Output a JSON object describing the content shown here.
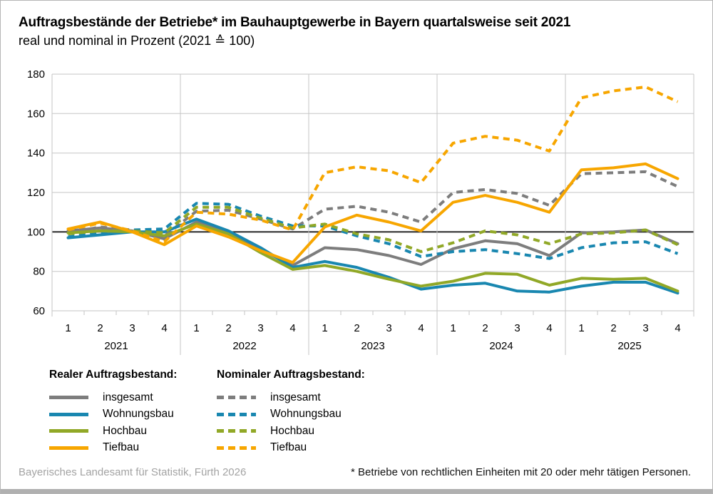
{
  "header": {
    "title": "Auftragsbestände der Betriebe* im Bauhauptgewerbe in Bayern quartalsweise seit 2021",
    "subtitle": "real und nominal in Prozent (2021 ≙ 100)"
  },
  "legend": {
    "real_header": "Realer Auftragsbestand:",
    "nominal_header": "Nominaler Auftragsbestand:",
    "items": [
      "insgesamt",
      "Wohnungsbau",
      "Hochbau",
      "Tiefbau"
    ]
  },
  "footer": {
    "source": "Bayerisches Landesamt für Statistik, Fürth 2026",
    "footnote": "* Betriebe von rechtlichen Einheiten mit 20 oder mehr tätigen Personen."
  },
  "colors": {
    "insgesamt": "#7d7d7d",
    "wohnungsbau": "#1987b0",
    "hochbau": "#91a827",
    "tiefbau": "#f7a600",
    "grid": "#c6c6c6",
    "baseline": "#1a1a1a"
  },
  "chart_data": {
    "type": "line",
    "title": "Auftragsbestände der Betriebe im Bauhauptgewerbe in Bayern quartalsweise seit 2021",
    "subtitle": "real und nominal in Prozent (2021 = 100)",
    "years": [
      "2021",
      "2022",
      "2023",
      "2024",
      "2025"
    ],
    "quarter_labels": [
      "1",
      "2",
      "3",
      "4"
    ],
    "ylim": [
      60,
      180
    ],
    "yticks": [
      60,
      80,
      100,
      120,
      140,
      160,
      180
    ],
    "baseline": 100,
    "grid": true,
    "legend_position": "bottom-left",
    "series": [
      {
        "key": "real-insgesamt",
        "label": "insgesamt",
        "group": "Realer Auftragsbestand",
        "style": "solid",
        "color_key": "insgesamt",
        "values": [
          100.5,
          102,
          100.5,
          96.5,
          105,
          99.5,
          91,
          83,
          92,
          91,
          88,
          83.5,
          91.5,
          95.5,
          94,
          88,
          99.5,
          100,
          101,
          94
        ]
      },
      {
        "key": "nominal-insgesamt",
        "label": "insgesamt",
        "group": "Nominaler Auftragsbestand",
        "style": "dashed",
        "color_key": "insgesamt",
        "values": [
          99.5,
          102.5,
          101,
          98,
          110.5,
          111,
          106.5,
          101.5,
          111.5,
          113,
          110,
          105,
          120,
          121.5,
          119.5,
          113.5,
          129.5,
          130,
          130.5,
          123
        ]
      },
      {
        "key": "real-wohnungsbau",
        "label": "Wohnungsbau",
        "group": "Realer Auftragsbestand",
        "style": "solid",
        "color_key": "wohnungsbau",
        "values": [
          97,
          98.5,
          100,
          100,
          106.5,
          100.5,
          92,
          82,
          85,
          82,
          77,
          71,
          73,
          74,
          70,
          69.5,
          72.5,
          74.5,
          74.5,
          69
        ]
      },
      {
        "key": "nominal-wohnungsbau",
        "label": "Wohnungsbau",
        "group": "Nominaler Auftragsbestand",
        "style": "dashed",
        "color_key": "wohnungsbau",
        "values": [
          97.5,
          99.5,
          101,
          101.5,
          114.5,
          114,
          108,
          103,
          103,
          98,
          94,
          87.5,
          90,
          91,
          89,
          86.5,
          92,
          94.5,
          95,
          89
        ]
      },
      {
        "key": "real-hochbau",
        "label": "Hochbau",
        "group": "Realer Auftragsbestand",
        "style": "solid",
        "color_key": "hochbau",
        "values": [
          99.5,
          100.5,
          100,
          98,
          104,
          99,
          89.5,
          81,
          83,
          80,
          76,
          72.5,
          75,
          79,
          78.5,
          73,
          76.5,
          76,
          76.5,
          70
        ]
      },
      {
        "key": "nominal-hochbau",
        "label": "Hochbau",
        "group": "Nominaler Auftragsbestand",
        "style": "dashed",
        "color_key": "hochbau",
        "values": [
          99,
          100.5,
          100.5,
          99.5,
          112.5,
          112.5,
          107,
          102,
          104,
          99,
          96,
          90,
          94.5,
          100.5,
          98.5,
          94,
          99,
          99.5,
          101,
          93.5
        ]
      },
      {
        "key": "real-tiefbau",
        "label": "Tiefbau",
        "group": "Realer Auftragsbestand",
        "style": "solid",
        "color_key": "tiefbau",
        "values": [
          101.5,
          105,
          100,
          93.5,
          103,
          97.5,
          90.5,
          84.5,
          102.5,
          108.5,
          105,
          100.5,
          115,
          118.5,
          115,
          110,
          131.5,
          132.5,
          134.5,
          127
        ]
      },
      {
        "key": "nominal-tiefbau",
        "label": "Tiefbau",
        "group": "Nominaler Auftragsbestand",
        "style": "dashed",
        "color_key": "tiefbau",
        "values": [
          101,
          104.5,
          100.5,
          95,
          110,
          109,
          106,
          101,
          130,
          133,
          131,
          125,
          145,
          148.5,
          146.5,
          141,
          168,
          171.5,
          173.5,
          166
        ]
      }
    ]
  }
}
